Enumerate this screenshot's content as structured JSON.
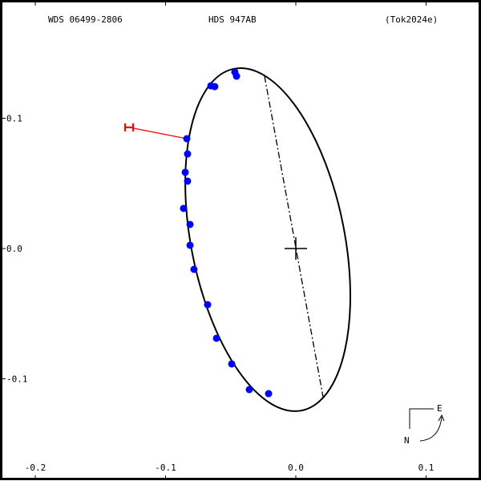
{
  "header": {
    "left": "WDS 06499-2806",
    "center": "HDS 947AB",
    "right": "(Tok2024e)"
  },
  "compass": {
    "east": "E",
    "north": "N"
  },
  "chart_data": {
    "type": "scatter",
    "title": "HDS 947AB",
    "xlim": [
      -0.2,
      0.14
    ],
    "ylim": [
      -0.16,
      0.16
    ],
    "xticks": [
      -0.2,
      -0.1,
      0.0,
      0.1
    ],
    "xtick_labels": [
      "-0.2",
      "-0.1",
      "0.0",
      "0.1"
    ],
    "yticks": [
      0.1,
      0.0,
      -0.1
    ],
    "ytick_labels": [
      "0.1",
      "0.0",
      "-0.1"
    ],
    "grid": false,
    "point_color": "#0000ff",
    "orbit_color": "#000000",
    "hipparcos_color": "#ff0000",
    "points": [
      [
        -0.0468,
        0.1354
      ],
      [
        -0.0455,
        0.1323
      ],
      [
        -0.0652,
        0.1249
      ],
      [
        -0.0622,
        0.1243
      ],
      [
        -0.0837,
        0.0843
      ],
      [
        -0.0831,
        0.0726
      ],
      [
        -0.0849,
        0.0585
      ],
      [
        -0.0831,
        0.0517
      ],
      [
        -0.0862,
        0.0308
      ],
      [
        -0.0812,
        0.0185
      ],
      [
        -0.0812,
        0.0025
      ],
      [
        -0.0782,
        -0.016
      ],
      [
        -0.0677,
        -0.0431
      ],
      [
        -0.0609,
        -0.0689
      ],
      [
        -0.0492,
        -0.0886
      ],
      [
        -0.0357,
        -0.1083
      ],
      [
        -0.0209,
        -0.1114
      ]
    ],
    "orbit_ellipse": {
      "center": [
        -0.0215,
        0.0068
      ],
      "semi_major": 0.1337,
      "semi_minor": 0.0589,
      "tilt_deg": -11.2
    },
    "line_of_nodes": [
      [
        -0.024,
        0.1323
      ],
      [
        0.0209,
        -0.1138
      ]
    ],
    "primary": [
      0.0,
      0.0
    ],
    "hipparcos_point": {
      "from": [
        -0.0837,
        0.0843
      ],
      "to": [
        -0.128,
        0.093
      ],
      "label": "H"
    }
  }
}
